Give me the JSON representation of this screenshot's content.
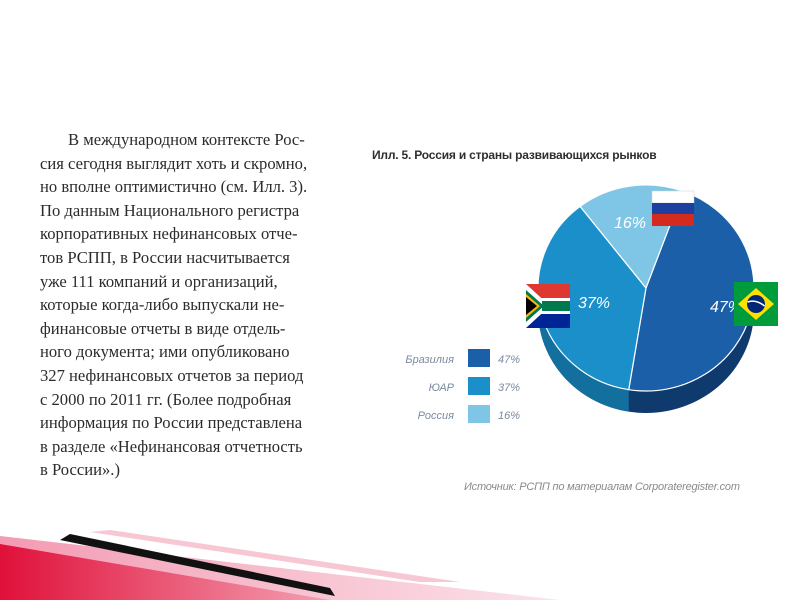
{
  "text_block": {
    "lines": [
      "В международном контексте Рос-",
      "сия сегодня выглядит хоть и скромно,",
      "но вполне оптимистично (см. Илл. 3).",
      "По данным Национального регистра",
      "корпоративных нефинансовых отче-",
      "тов РСПП, в России насчитывается",
      "уже 111 компаний и организаций,",
      "которые когда-либо выпускали не-",
      "финансовые отчеты в виде отдель-",
      "ного документа; ими опубликовано",
      "327 нефинансовых отчетов за период",
      "с 2000 по 2011 гг. (Более подробная",
      "информация по России представлена",
      "в разделе «Нефинансовая отчетность",
      "в России».)"
    ]
  },
  "source": "Источник: РСПП по материалам Corporateregister.com",
  "colors": {
    "brazil": "#1a5fa8",
    "south_africa": "#1b8fc9",
    "russia": "#7fc6e6",
    "side_dark": "#0e3a6e",
    "accent_pink": "#f6b5c6",
    "accent_red": "#d8143c"
  },
  "chart_data": {
    "type": "pie",
    "title": "Илл. 5. Россия и  страны развивающихся рынков",
    "categories": [
      "Бразилия",
      "ЮАР",
      "Россия"
    ],
    "values": [
      47,
      37,
      16
    ],
    "labels": [
      "47%",
      "37%",
      "16%"
    ],
    "legend_labels": [
      "47%",
      "37%",
      "16%"
    ],
    "legend_position": "left",
    "flags": [
      "brazil-flag",
      "south-africa-flag",
      "russia-flag"
    ]
  }
}
